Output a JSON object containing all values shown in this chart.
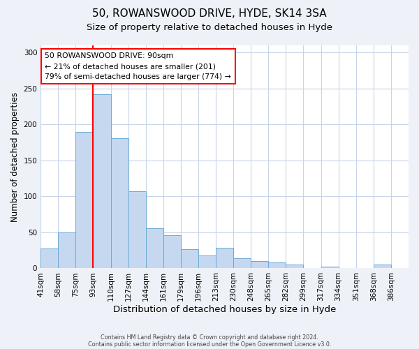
{
  "title": "50, ROWANSWOOD DRIVE, HYDE, SK14 3SA",
  "subtitle": "Size of property relative to detached houses in Hyde",
  "xlabel": "Distribution of detached houses by size in Hyde",
  "ylabel": "Number of detached properties",
  "bin_labels": [
    "41sqm",
    "58sqm",
    "75sqm",
    "93sqm",
    "110sqm",
    "127sqm",
    "144sqm",
    "161sqm",
    "179sqm",
    "196sqm",
    "213sqm",
    "230sqm",
    "248sqm",
    "265sqm",
    "282sqm",
    "299sqm",
    "317sqm",
    "334sqm",
    "351sqm",
    "368sqm",
    "386sqm"
  ],
  "bar_values": [
    28,
    50,
    190,
    242,
    181,
    107,
    56,
    46,
    27,
    18,
    29,
    14,
    10,
    8,
    5,
    0,
    2,
    0,
    0,
    5,
    0
  ],
  "bar_color": "#c5d8f0",
  "bar_edge_color": "#6aaad4",
  "property_line_color": "red",
  "property_line_bin_index": 3,
  "annotation_text": "50 ROWANSWOOD DRIVE: 90sqm\n← 21% of detached houses are smaller (201)\n79% of semi-detached houses are larger (774) →",
  "annotation_box_color": "white",
  "annotation_box_edge_color": "red",
  "ylim": [
    0,
    310
  ],
  "yticks": [
    0,
    50,
    100,
    150,
    200,
    250,
    300
  ],
  "footer_line1": "Contains HM Land Registry data © Crown copyright and database right 2024.",
  "footer_line2": "Contains public sector information licensed under the Open Government Licence v3.0.",
  "background_color": "#eef2f8",
  "plot_bg_color": "white",
  "grid_color": "#c8d4e8",
  "title_fontsize": 11,
  "subtitle_fontsize": 9.5,
  "xlabel_fontsize": 9.5,
  "ylabel_fontsize": 8.5,
  "tick_fontsize": 7.5,
  "annotation_fontsize": 7.8,
  "footer_fontsize": 5.8
}
